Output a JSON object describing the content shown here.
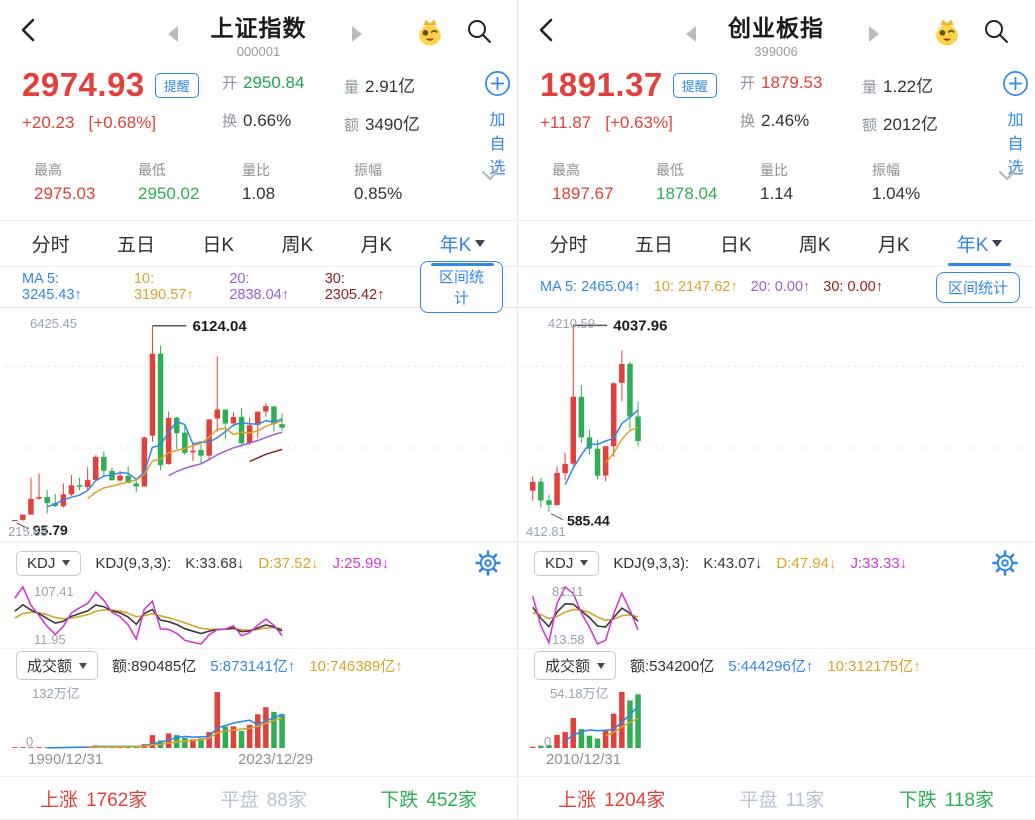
{
  "colors": {
    "red": "#e2403a",
    "green": "#2fae54",
    "blue": "#3187e6",
    "gold": "#d9a32b",
    "purple": "#995fd8",
    "dark_red": "#8d2222",
    "magenta": "#d13bd1",
    "k_line": "#3a3a3a",
    "flat_gray": "#b8c2d2"
  },
  "panes": [
    {
      "header": {
        "title": "上证指数",
        "code": "000001"
      },
      "quote": {
        "price": "2974.93",
        "alert_label": "提醒",
        "change": "+20.23",
        "change_pct": "[+0.68%]",
        "open_label": "开",
        "open": "2950.84",
        "open_color": "#1ea54d",
        "vol_label": "量",
        "vol": "2.91亿",
        "turnover_label": "换",
        "turnover": "0.66%",
        "amount_label": "额",
        "amount": "3490亿",
        "add_watch_label": "加自选",
        "high_label": "最高",
        "high": "2975.03",
        "low_label": "最低",
        "low": "2950.02",
        "vol_ratio_label": "量比",
        "vol_ratio": "1.08",
        "amplitude_label": "振幅",
        "amplitude": "0.85%"
      },
      "tabs": [
        {
          "label": "分时"
        },
        {
          "label": "五日"
        },
        {
          "label": "日K"
        },
        {
          "label": "周K"
        },
        {
          "label": "月K"
        },
        {
          "label": "年K"
        }
      ],
      "ma_row": {
        "ma5": "MA 5: 3245.43↑",
        "ma10": "10: 3190.57↑",
        "ma20": "20: 2838.04↑",
        "ma30": "30: 2305.42↑",
        "range_btn": "区间统计"
      },
      "kdj": {
        "btn": "KDJ",
        "formula": "KDJ(9,3,3):",
        "k": "K:33.68↓",
        "d": "D:37.52↓",
        "j": "J:25.99↓",
        "max": "107.41",
        "min": "11.95"
      },
      "volume": {
        "btn": "成交额",
        "amount": "额:890485亿",
        "ma5": "5:873141亿↑",
        "ma10": "10:746389亿↑",
        "max": "132万亿",
        "zero": "0",
        "date_start": "1990/12/31",
        "date_end": "2023/12/29"
      },
      "breadth": {
        "up_label": "上涨",
        "up": "1762家",
        "flat_label": "平盘",
        "flat": "88家",
        "down_label": "下跌",
        "down": "452家"
      }
    },
    {
      "header": {
        "title": "创业板指",
        "code": "399006"
      },
      "quote": {
        "price": "1891.37",
        "alert_label": "提醒",
        "change": "+11.87",
        "change_pct": "[+0.63%]",
        "open_label": "开",
        "open": "1879.53",
        "open_color": "#e2403a",
        "vol_label": "量",
        "vol": "1.22亿",
        "turnover_label": "换",
        "turnover": "2.46%",
        "amount_label": "额",
        "amount": "2012亿",
        "add_watch_label": "加自选",
        "high_label": "最高",
        "high": "1897.67",
        "low_label": "最低",
        "low": "1878.04",
        "vol_ratio_label": "量比",
        "vol_ratio": "1.14",
        "amplitude_label": "振幅",
        "amplitude": "1.04%"
      },
      "tabs": [
        {
          "label": "分时"
        },
        {
          "label": "五日"
        },
        {
          "label": "日K"
        },
        {
          "label": "周K"
        },
        {
          "label": "月K"
        },
        {
          "label": "年K"
        }
      ],
      "ma_row": {
        "ma5": "MA 5: 2465.04↑",
        "ma10": "10: 2147.62↑",
        "ma20": "20: 0.00↑",
        "ma30": "30: 0.00↑",
        "range_btn": "区间统计"
      },
      "kdj": {
        "btn": "KDJ",
        "formula": "KDJ(9,3,3):",
        "k": "K:43.07↓",
        "d": "D:47.94↓",
        "j": "J:33.33↓",
        "max": "81.11",
        "min": "13.58"
      },
      "volume": {
        "btn": "成交额",
        "amount": "额:534200亿",
        "ma5": "5:444296亿↑",
        "ma10": "10:312175亿↑",
        "max": "54.18万亿",
        "zero": "0",
        "date_start": "2010/12/31",
        "date_end": ""
      },
      "breadth": {
        "up_label": "上涨",
        "up": "1204家",
        "flat_label": "平盘",
        "flat": "11家",
        "down_label": "下跌",
        "down": "118家"
      }
    }
  ],
  "chart_data": [
    {
      "type": "candlestick",
      "title": "上证指数 年K",
      "axis_max": 6425.45,
      "axis_min": 215.63,
      "axis_max_label": "6425.45",
      "axis_min_label": "215.63",
      "high_callout": "6124.04",
      "low_callout": "95.79",
      "kdj_max": 107.41,
      "kdj_min": 11.95,
      "vol_axis_max": 132,
      "vol_axis_max_label": "132万亿",
      "x_start": "1990/12/31",
      "x_end": "2023/12/29",
      "years": [
        1990,
        1991,
        1992,
        1993,
        1994,
        1995,
        1996,
        1997,
        1998,
        1999,
        2000,
        2001,
        2002,
        2003,
        2004,
        2005,
        2006,
        2007,
        2008,
        2009,
        2010,
        2011,
        2012,
        2013,
        2014,
        2015,
        2016,
        2017,
        2018,
        2019,
        2020,
        2021,
        2022,
        2023
      ],
      "ohlc": [
        [
          96,
          127,
          95.79,
          127
        ],
        [
          128,
          293,
          105,
          293
        ],
        [
          293,
          1429,
          292,
          780
        ],
        [
          784,
          1558,
          750,
          833
        ],
        [
          837,
          1052,
          325,
          647
        ],
        [
          647,
          926,
          524,
          555
        ],
        [
          550,
          1258,
          512,
          917
        ],
        [
          917,
          1510,
          870,
          1194
        ],
        [
          1200,
          1422,
          1043,
          1146
        ],
        [
          1144,
          1756,
          1047,
          1366
        ],
        [
          1368,
          2125,
          1361,
          2073
        ],
        [
          2077,
          2245,
          1514,
          1645
        ],
        [
          1643,
          1748,
          1339,
          1357
        ],
        [
          1347,
          1649,
          1307,
          1497
        ],
        [
          1492,
          1783,
          1259,
          1266
        ],
        [
          1260,
          1328,
          998,
          1161
        ],
        [
          1163,
          2698,
          1161,
          2675
        ],
        [
          2728,
          6124.04,
          2541,
          5261
        ],
        [
          5265,
          5522,
          1664,
          1820
        ],
        [
          1849,
          3478,
          1844,
          3277
        ],
        [
          3289,
          3306,
          2319,
          2808
        ],
        [
          2825,
          3067,
          2134,
          2199
        ],
        [
          2212,
          2478,
          1949,
          2269
        ],
        [
          2289,
          2444,
          1849,
          2115
        ],
        [
          2112,
          3239,
          1974,
          3234
        ],
        [
          3258,
          5178,
          2850,
          3539
        ],
        [
          3536,
          3539,
          2638,
          3103
        ],
        [
          3105,
          3450,
          3016,
          3307
        ],
        [
          3314,
          3587,
          2449,
          2493
        ],
        [
          2497,
          3288,
          2440,
          3050
        ],
        [
          3066,
          3474,
          2646,
          3473
        ],
        [
          3474,
          3731,
          3312,
          3639
        ],
        [
          3632,
          3651,
          2863,
          3089
        ],
        [
          3087,
          3418,
          2882,
          2974.93
        ]
      ],
      "volume_wanyi": [
        0.01,
        0.15,
        0.7,
        0.9,
        1.0,
        0.5,
        2.1,
        3.1,
        2.4,
        3.1,
        6.1,
        3.9,
        2.8,
        3.2,
        4.2,
        3.2,
        9.0,
        30.5,
        18.0,
        34.5,
        30.4,
        23.8,
        20.5,
        23.2,
        37.4,
        132,
        50.3,
        51.2,
        40.2,
        54.4,
        79.5,
        96.1,
        85.0,
        80.2
      ]
    },
    {
      "type": "candlestick",
      "title": "创业板指 年K",
      "axis_max": 4210.59,
      "axis_min": 412.81,
      "axis_max_label": "4210.59",
      "axis_min_label": "412.81",
      "high_callout": "4037.96",
      "low_callout": "585.44",
      "kdj_max": 81.11,
      "kdj_min": 13.58,
      "vol_axis_max": 54.18,
      "vol_axis_max_label": "54.18万亿",
      "x_start": "2010/12/31",
      "x_end": "",
      "years": [
        2010,
        2011,
        2012,
        2013,
        2014,
        2015,
        2016,
        2017,
        2018,
        2019,
        2020,
        2021,
        2022,
        2023
      ],
      "ohlc": [
        [
          975,
          1239,
          790,
          1137
        ],
        [
          1140,
          1211,
          665,
          791
        ],
        [
          794,
          899,
          585.44,
          713
        ],
        [
          710,
          1423,
          696,
          1304
        ],
        [
          1301,
          1676,
          1169,
          1471
        ],
        [
          1475,
          4037.96,
          1429,
          2714
        ],
        [
          2714,
          2934,
          1856,
          1962
        ],
        [
          1962,
          2101,
          1641,
          1752
        ],
        [
          1752,
          1918,
          1184,
          1250
        ],
        [
          1256,
          1798,
          1151,
          1798
        ],
        [
          1798,
          2981,
          1602,
          2966
        ],
        [
          2973,
          3576,
          2633,
          3322
        ],
        [
          3325,
          3360,
          2121,
          2346
        ],
        [
          2349,
          2630,
          1795,
          1891.37
        ]
      ],
      "volume_wanyi": [
        1.3,
        2.2,
        2.8,
        12.8,
        15.4,
        29.0,
        18.3,
        11.9,
        9.2,
        17.3,
        33.2,
        54.18,
        46.0,
        52.0
      ]
    }
  ]
}
